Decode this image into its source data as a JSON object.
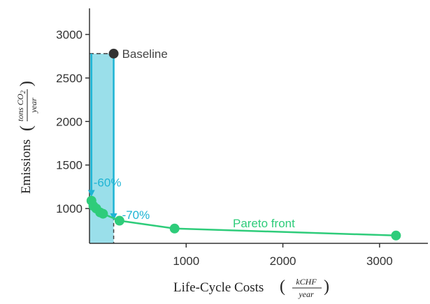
{
  "chart_data": {
    "type": "scatter",
    "xlabel": {
      "main": "Life-Cycle Costs",
      "unit_numerator": "kCHF",
      "unit_denominator": "year"
    },
    "ylabel": {
      "main": "Emissions",
      "unit_numerator": "tons CO",
      "unit_subscript": "2",
      "unit_denominator": "year"
    },
    "xlim": [
      0,
      3500
    ],
    "ylim": [
      600,
      3300
    ],
    "xticks": [
      1000,
      2000,
      3000
    ],
    "yticks": [
      1000,
      1500,
      2000,
      2500,
      3000
    ],
    "grid": false,
    "colors": {
      "pareto": "#2ecc7a",
      "baseline": "#333333",
      "reduction": "#1eb4d4",
      "region_fill": "#8fdbe8",
      "axis": "#333333"
    },
    "baseline": {
      "label": "Baseline",
      "x": 250,
      "y": 2780
    },
    "pareto_front": {
      "label": "Pareto front",
      "points": [
        {
          "x": 20,
          "y": 1090
        },
        {
          "x": 40,
          "y": 1030
        },
        {
          "x": 70,
          "y": 1000
        },
        {
          "x": 110,
          "y": 955
        },
        {
          "x": 140,
          "y": 940
        },
        {
          "x": 310,
          "y": 860
        },
        {
          "x": 880,
          "y": 770
        },
        {
          "x": 3170,
          "y": 690
        }
      ]
    },
    "reductions": [
      {
        "label": "-60%",
        "x": 20,
        "y_from": 2780,
        "y_to": 1110
      },
      {
        "label": "-70%",
        "x": 250,
        "y_from": 2780,
        "y_to": 840
      }
    ],
    "shaded_region": {
      "x0": 0,
      "x1": 250,
      "y0": 600,
      "y1": 2780
    }
  }
}
